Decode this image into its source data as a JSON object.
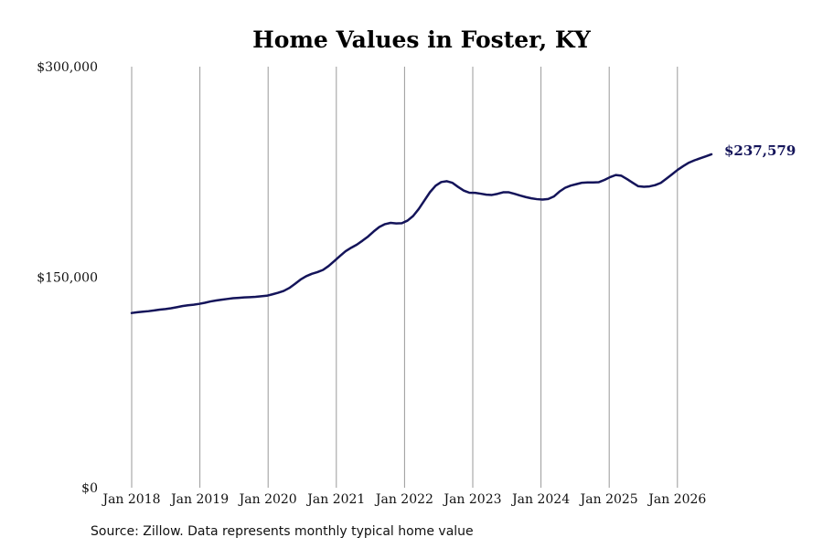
{
  "chart_data": {
    "type": "line",
    "title": "Home Values in Foster, KY",
    "xlabel": "",
    "ylabel": "",
    "x_start": "2018-01",
    "x_step": "month",
    "ylim": [
      0,
      300000
    ],
    "y_ticks": [
      "$0",
      "$150,000",
      "$300,000"
    ],
    "y_tick_values": [
      0,
      150000,
      300000
    ],
    "x_ticks": [
      "Jan 2018",
      "Jan 2019",
      "Jan 2020",
      "Jan 2021",
      "Jan 2022",
      "Jan 2023",
      "Jan 2024",
      "Jan 2025",
      "Jan 2026"
    ],
    "grid": "vertical",
    "line_color": "#14145a",
    "end_label": "$237,579",
    "series": [
      {
        "values": [
          124500,
          125000,
          125400,
          125800,
          126300,
          126900,
          127300,
          127900,
          128600,
          129400,
          130000,
          130400,
          131000,
          131800,
          132700,
          133400,
          134000,
          134500,
          135000,
          135300,
          135600,
          135800,
          136000,
          136400,
          136800,
          137800,
          138900,
          140200,
          142300,
          145200,
          148300,
          150700,
          152400,
          153600,
          155200,
          158000,
          161500,
          165100,
          168500,
          171000,
          173200,
          176000,
          179000,
          182600,
          185800,
          187800,
          188700,
          188300,
          188500,
          190300,
          193600,
          198600,
          204600,
          210600,
          215200,
          217800,
          218400,
          217200,
          214300,
          211700,
          210200,
          210100,
          209500,
          208800,
          208600,
          209400,
          210500,
          210500,
          209400,
          208200,
          207100,
          206200,
          205600,
          205300,
          205700,
          207500,
          211000,
          213700,
          215300,
          216300,
          217300,
          217500,
          217500,
          217700,
          219300,
          221300,
          222800,
          222300,
          219900,
          217300,
          214800,
          214400,
          214700,
          215600,
          217200,
          220200,
          223300,
          226500,
          229200,
          231600,
          233300,
          234700,
          236100,
          237579
        ]
      }
    ]
  },
  "footer": {
    "source": "Source: Zillow. Data represents monthly typical home value"
  }
}
